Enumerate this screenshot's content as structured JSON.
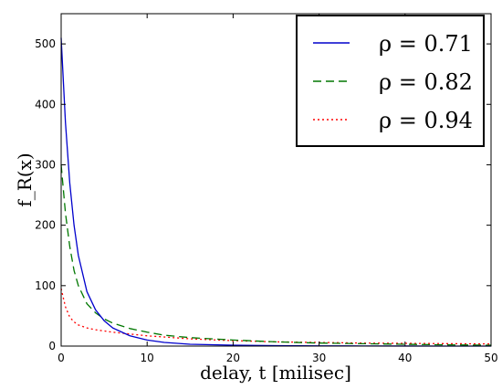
{
  "chart_data": {
    "type": "line",
    "title": "",
    "xlabel": "delay, t [milisec]",
    "ylabel": "f_R(x)",
    "xlim": [
      0,
      50
    ],
    "ylim": [
      0,
      550
    ],
    "xticks": [
      0,
      10,
      20,
      30,
      40,
      50
    ],
    "yticks": [
      0,
      100,
      200,
      300,
      400,
      500
    ],
    "grid": false,
    "legend_position": "top-right",
    "series": [
      {
        "name": "ρ = 0.71",
        "color": "#0000cc",
        "style": "solid",
        "x": [
          0,
          0.5,
          1,
          1.5,
          2,
          3,
          4,
          5,
          6,
          8,
          10,
          12,
          15,
          20,
          25,
          30,
          35,
          40,
          45,
          50
        ],
        "y": [
          510,
          370,
          270,
          200,
          150,
          90,
          60,
          42,
          30,
          17,
          10,
          6,
          3,
          1.5,
          0.8,
          0.4,
          0.2,
          0.1,
          0.05,
          0
        ]
      },
      {
        "name": "ρ = 0.82",
        "color": "#007700",
        "style": "dashed",
        "x": [
          0,
          0.5,
          1,
          1.5,
          2,
          3,
          4,
          5,
          6,
          8,
          10,
          12,
          15,
          20,
          25,
          30,
          35,
          40,
          45,
          50
        ],
        "y": [
          300,
          220,
          165,
          125,
          100,
          70,
          55,
          45,
          38,
          29,
          23,
          18,
          14,
          10,
          7,
          5,
          4,
          3,
          2,
          1.5
        ]
      },
      {
        "name": "ρ = 0.94",
        "color": "#ff0000",
        "style": "dotted",
        "x": [
          0,
          0.5,
          1,
          1.5,
          2,
          3,
          4,
          5,
          6,
          8,
          10,
          12,
          15,
          20,
          25,
          30,
          35,
          40,
          45,
          50
        ],
        "y": [
          95,
          65,
          48,
          40,
          35,
          30,
          27,
          25,
          23,
          20,
          17,
          15,
          12,
          9,
          7,
          6,
          5,
          4.5,
          4,
          3.5
        ]
      }
    ]
  }
}
